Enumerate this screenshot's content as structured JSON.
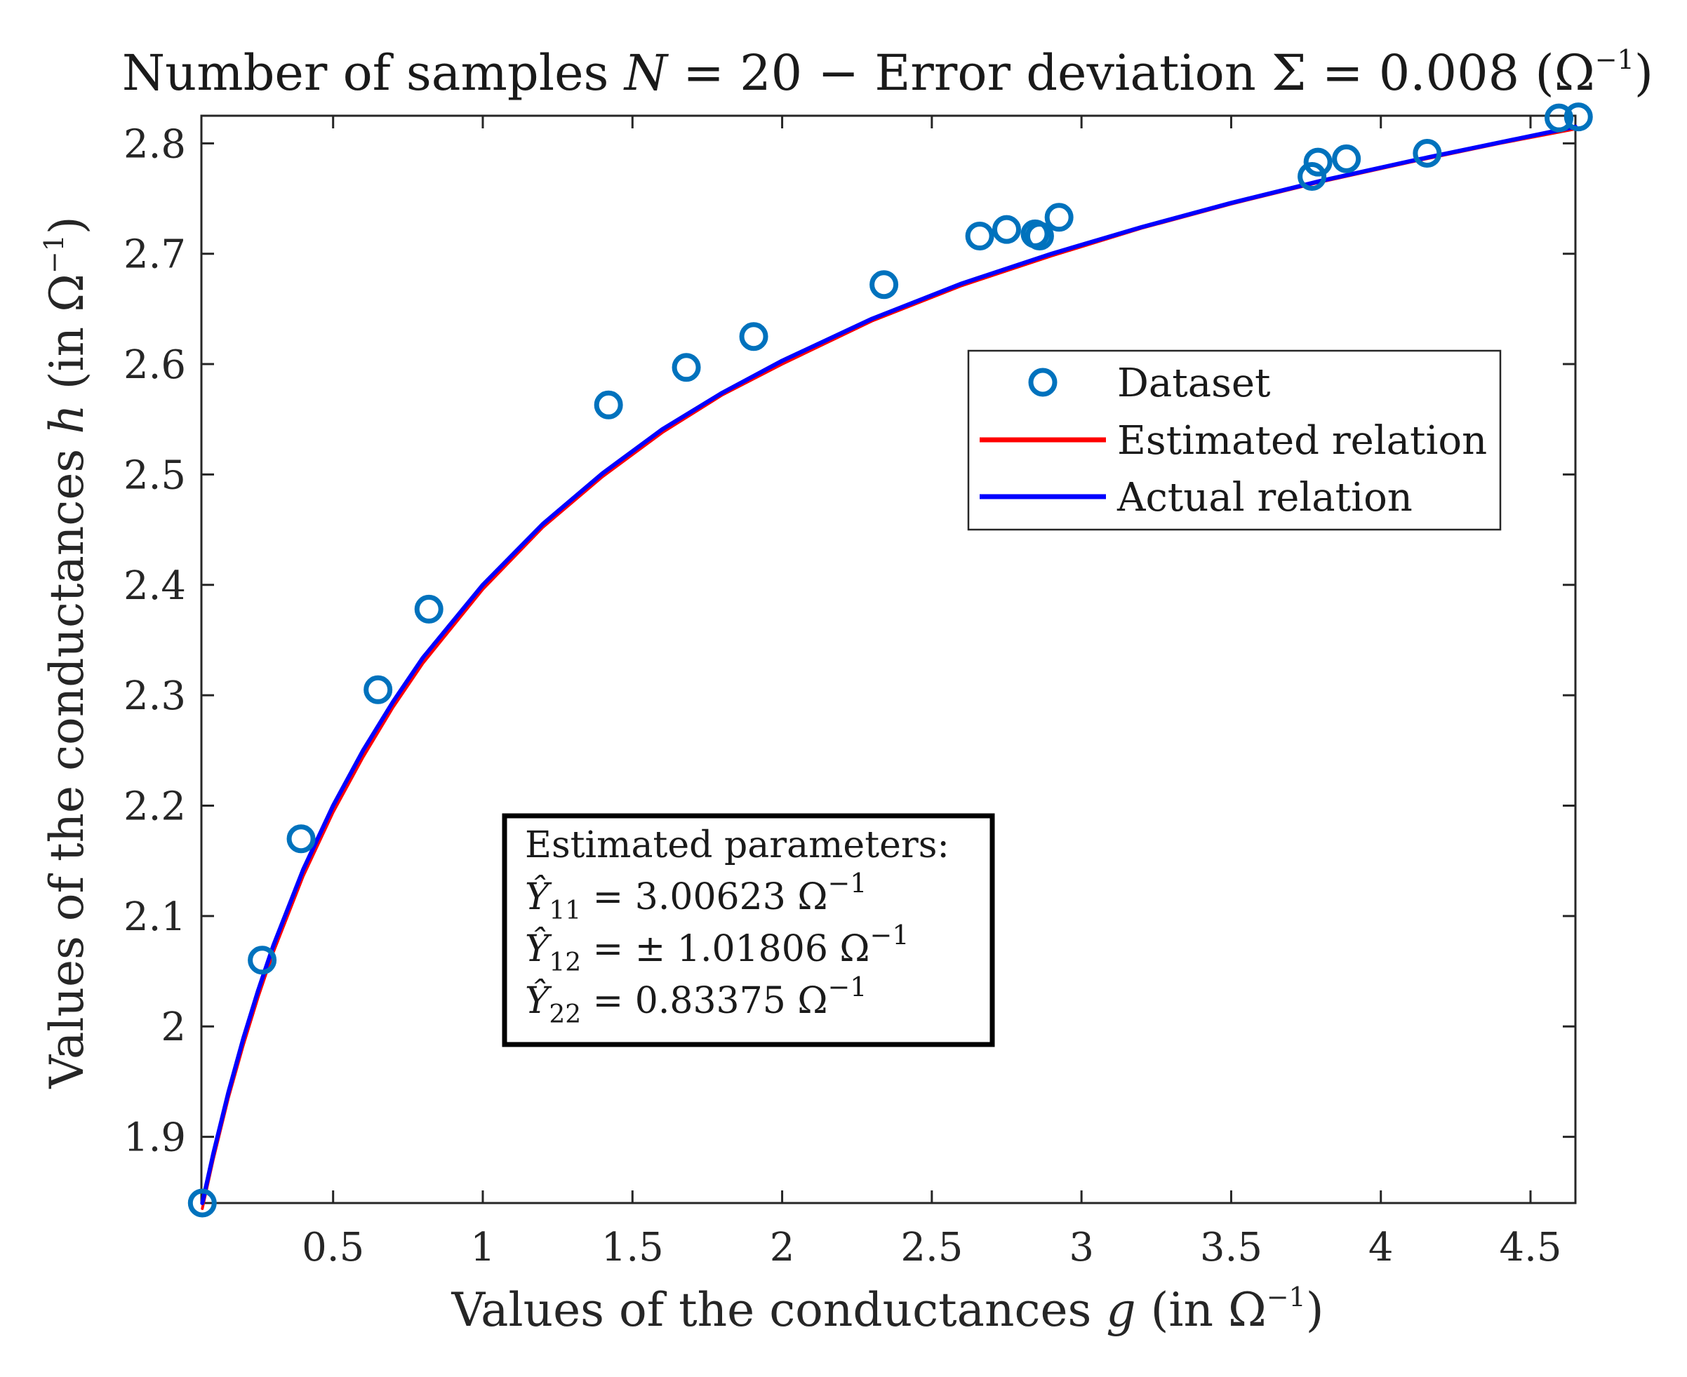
{
  "chart_data": {
    "type": "line",
    "title_parts": {
      "prefix": "Number of samples ",
      "n_symbol": "N",
      "n_value": " = 20 − Error deviation Σ = 0.008 (Ω",
      "n_sup": "−1",
      "suffix": ")"
    },
    "xlabel_parts": {
      "prefix": "Values of the conductances ",
      "var": "g",
      "mid": " (in Ω",
      "sup": "−1",
      "suffix": ")"
    },
    "ylabel_parts": {
      "prefix": "Values of the conductances ",
      "var": "h",
      "mid": " (in Ω",
      "sup": "−1",
      "suffix": ")"
    },
    "xlim": [
      0.06,
      4.65
    ],
    "ylim": [
      1.84,
      2.825
    ],
    "xticks": [
      0.5,
      1,
      1.5,
      2,
      2.5,
      3,
      3.5,
      4,
      4.5
    ],
    "xtick_labels": [
      "0.5",
      "1",
      "1.5",
      "2",
      "2.5",
      "3",
      "3.5",
      "4",
      "4.5"
    ],
    "yticks": [
      1.9,
      2.0,
      2.1,
      2.2,
      2.3,
      2.4,
      2.5,
      2.6,
      2.7,
      2.8
    ],
    "ytick_labels": [
      "1.9",
      "2",
      "2.1",
      "2.2",
      "2.3",
      "2.4",
      "2.5",
      "2.6",
      "2.7",
      "2.8"
    ],
    "legend_position": "upper-right",
    "legend": [
      {
        "label": "Dataset",
        "kind": "marker",
        "color": "#0072BD"
      },
      {
        "label": "Estimated relation",
        "kind": "line",
        "color": "#FF0000"
      },
      {
        "label": "Actual relation",
        "kind": "line",
        "color": "#0000FF"
      }
    ],
    "scatter": {
      "name": "Dataset",
      "color": "#0072BD",
      "points": [
        [
          0.063,
          1.84
        ],
        [
          0.263,
          2.06
        ],
        [
          0.393,
          2.17
        ],
        [
          0.65,
          2.305
        ],
        [
          0.82,
          2.378
        ],
        [
          1.42,
          2.563
        ],
        [
          1.68,
          2.597
        ],
        [
          1.905,
          2.625
        ],
        [
          2.34,
          2.672
        ],
        [
          2.66,
          2.716
        ],
        [
          2.75,
          2.722
        ],
        [
          2.845,
          2.718
        ],
        [
          2.86,
          2.716
        ],
        [
          2.925,
          2.733
        ],
        [
          3.77,
          2.77
        ],
        [
          3.79,
          2.783
        ],
        [
          3.885,
          2.786
        ],
        [
          4.155,
          2.791
        ],
        [
          4.595,
          2.823
        ],
        [
          4.66,
          2.824
        ]
      ]
    },
    "series": [
      {
        "name": "Estimated relation",
        "color": "#FF0000",
        "x": [
          0.063,
          0.1,
          0.15,
          0.2,
          0.25,
          0.3,
          0.4,
          0.5,
          0.6,
          0.7,
          0.8,
          1.0,
          1.2,
          1.4,
          1.6,
          1.8,
          2.0,
          2.3,
          2.6,
          2.9,
          3.2,
          3.5,
          3.8,
          4.1,
          4.4,
          4.65
        ],
        "y": [
          1.835,
          1.88,
          1.935,
          1.983,
          2.027,
          2.067,
          2.136,
          2.194,
          2.244,
          2.289,
          2.329,
          2.396,
          2.452,
          2.498,
          2.538,
          2.572,
          2.6,
          2.639,
          2.671,
          2.698,
          2.723,
          2.745,
          2.765,
          2.783,
          2.8,
          2.813
        ]
      },
      {
        "name": "Actual relation",
        "color": "#0000FF",
        "x": [
          0.063,
          0.1,
          0.15,
          0.2,
          0.25,
          0.3,
          0.4,
          0.5,
          0.6,
          0.7,
          0.8,
          1.0,
          1.2,
          1.4,
          1.6,
          1.8,
          2.0,
          2.3,
          2.6,
          2.9,
          3.2,
          3.5,
          3.8,
          4.1,
          4.4,
          4.65
        ],
        "y": [
          1.84,
          1.885,
          1.94,
          1.989,
          2.033,
          2.073,
          2.142,
          2.2,
          2.25,
          2.294,
          2.334,
          2.4,
          2.455,
          2.501,
          2.541,
          2.574,
          2.603,
          2.641,
          2.673,
          2.7,
          2.724,
          2.746,
          2.766,
          2.784,
          2.801,
          2.815
        ]
      }
    ],
    "annotation": {
      "heading": "Estimated parameters:",
      "lines": [
        {
          "symbol": "Ŷ",
          "sub": "11",
          "text": " = 3.00623 Ω",
          "sup": "−1"
        },
        {
          "symbol": "Ŷ",
          "sub": "12",
          "text": " = ± 1.01806 Ω",
          "sup": "−1"
        },
        {
          "symbol": "Ŷ",
          "sub": "22",
          "text": " = 0.83375 Ω",
          "sup": "−1"
        }
      ]
    }
  }
}
